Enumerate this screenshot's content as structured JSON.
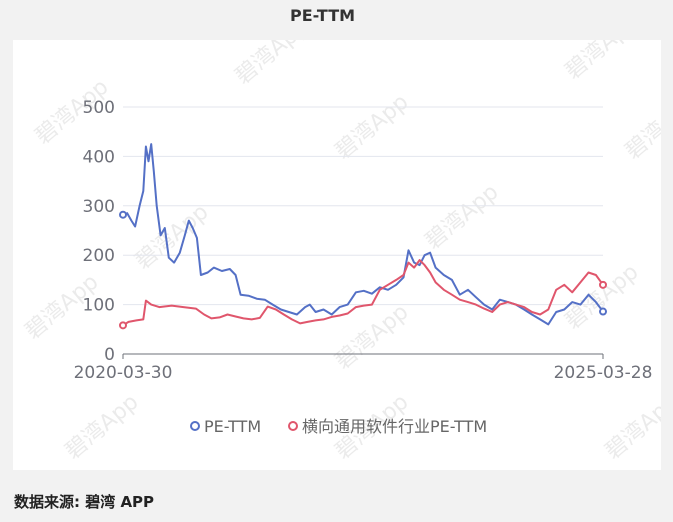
{
  "header": {
    "title": "PE-TTM"
  },
  "footer": {
    "source": "数据来源: 碧湾 APP"
  },
  "watermark": "碧湾App",
  "chart_data": {
    "type": "line",
    "title": "PE-TTM",
    "xlabel": "",
    "ylabel": "",
    "x_ticks": [
      "2020-03-30",
      "2025-03-28"
    ],
    "x_range": [
      "2020-03-30",
      "2025-03-28"
    ],
    "y_ticks": [
      0,
      100,
      200,
      300,
      400,
      500
    ],
    "ylim": [
      0,
      500
    ],
    "grid": "horizontal",
    "legend_position": "bottom",
    "colors": {
      "pe": "#5470c6",
      "industry": "#e0566c"
    },
    "series": [
      {
        "name": "PE-TTM",
        "color": "#5470c6",
        "points": [
          [
            "2020-03-30",
            282
          ],
          [
            "2020-04-15",
            285
          ],
          [
            "2020-05-01",
            270
          ],
          [
            "2020-05-15",
            258
          ],
          [
            "2020-06-01",
            300
          ],
          [
            "2020-06-15",
            330
          ],
          [
            "2020-06-25",
            420
          ],
          [
            "2020-07-05",
            390
          ],
          [
            "2020-07-15",
            425
          ],
          [
            "2020-07-25",
            370
          ],
          [
            "2020-08-05",
            300
          ],
          [
            "2020-08-20",
            240
          ],
          [
            "2020-09-05",
            255
          ],
          [
            "2020-09-20",
            195
          ],
          [
            "2020-10-10",
            185
          ],
          [
            "2020-11-01",
            205
          ],
          [
            "2020-11-20",
            240
          ],
          [
            "2020-12-05",
            270
          ],
          [
            "2020-12-20",
            255
          ],
          [
            "2021-01-05",
            235
          ],
          [
            "2021-01-20",
            160
          ],
          [
            "2021-02-15",
            165
          ],
          [
            "2021-03-10",
            175
          ],
          [
            "2021-04-10",
            168
          ],
          [
            "2021-05-10",
            172
          ],
          [
            "2021-06-01",
            160
          ],
          [
            "2021-06-20",
            120
          ],
          [
            "2021-07-20",
            118
          ],
          [
            "2021-08-20",
            112
          ],
          [
            "2021-09-20",
            110
          ],
          [
            "2021-10-20",
            100
          ],
          [
            "2021-11-20",
            90
          ],
          [
            "2021-12-20",
            85
          ],
          [
            "2022-01-20",
            80
          ],
          [
            "2022-02-20",
            95
          ],
          [
            "2022-03-10",
            100
          ],
          [
            "2022-04-01",
            85
          ],
          [
            "2022-05-01",
            90
          ],
          [
            "2022-06-01",
            80
          ],
          [
            "2022-07-01",
            95
          ],
          [
            "2022-08-01",
            100
          ],
          [
            "2022-09-01",
            125
          ],
          [
            "2022-10-01",
            128
          ],
          [
            "2022-11-01",
            122
          ],
          [
            "2022-12-01",
            135
          ],
          [
            "2023-01-01",
            130
          ],
          [
            "2023-02-01",
            140
          ],
          [
            "2023-03-01",
            155
          ],
          [
            "2023-03-20",
            210
          ],
          [
            "2023-04-10",
            185
          ],
          [
            "2023-05-01",
            180
          ],
          [
            "2023-05-20",
            200
          ],
          [
            "2023-06-10",
            205
          ],
          [
            "2023-07-01",
            175
          ],
          [
            "2023-08-01",
            160
          ],
          [
            "2023-09-01",
            150
          ],
          [
            "2023-10-01",
            120
          ],
          [
            "2023-11-01",
            130
          ],
          [
            "2023-12-01",
            115
          ],
          [
            "2024-01-01",
            100
          ],
          [
            "2024-02-01",
            90
          ],
          [
            "2024-03-01",
            110
          ],
          [
            "2024-04-01",
            105
          ],
          [
            "2024-05-01",
            100
          ],
          [
            "2024-06-01",
            90
          ],
          [
            "2024-07-01",
            80
          ],
          [
            "2024-08-01",
            70
          ],
          [
            "2024-09-01",
            60
          ],
          [
            "2024-10-01",
            85
          ],
          [
            "2024-11-01",
            90
          ],
          [
            "2024-12-01",
            105
          ],
          [
            "2025-01-01",
            100
          ],
          [
            "2025-02-01",
            120
          ],
          [
            "2025-03-01",
            105
          ],
          [
            "2025-03-28",
            86
          ]
        ]
      },
      {
        "name": "横向通用软件行业PE-TTM",
        "color": "#e0566c",
        "points": [
          [
            "2020-03-30",
            58
          ],
          [
            "2020-04-20",
            65
          ],
          [
            "2020-05-20",
            68
          ],
          [
            "2020-06-15",
            70
          ],
          [
            "2020-06-25",
            108
          ],
          [
            "2020-07-15",
            100
          ],
          [
            "2020-08-15",
            95
          ],
          [
            "2020-10-01",
            98
          ],
          [
            "2020-11-15",
            95
          ],
          [
            "2021-01-01",
            92
          ],
          [
            "2021-02-01",
            80
          ],
          [
            "2021-03-01",
            72
          ],
          [
            "2021-04-01",
            74
          ],
          [
            "2021-05-01",
            80
          ],
          [
            "2021-06-01",
            76
          ],
          [
            "2021-07-01",
            72
          ],
          [
            "2021-08-01",
            70
          ],
          [
            "2021-09-01",
            73
          ],
          [
            "2021-10-01",
            96
          ],
          [
            "2021-11-01",
            90
          ],
          [
            "2021-12-01",
            80
          ],
          [
            "2022-01-01",
            70
          ],
          [
            "2022-02-01",
            62
          ],
          [
            "2022-03-01",
            65
          ],
          [
            "2022-04-01",
            68
          ],
          [
            "2022-05-01",
            70
          ],
          [
            "2022-06-01",
            75
          ],
          [
            "2022-07-01",
            78
          ],
          [
            "2022-08-01",
            82
          ],
          [
            "2022-09-01",
            95
          ],
          [
            "2022-10-01",
            98
          ],
          [
            "2022-11-01",
            100
          ],
          [
            "2022-12-01",
            130
          ],
          [
            "2023-01-01",
            140
          ],
          [
            "2023-02-01",
            150
          ],
          [
            "2023-03-01",
            160
          ],
          [
            "2023-03-20",
            185
          ],
          [
            "2023-04-10",
            175
          ],
          [
            "2023-05-01",
            190
          ],
          [
            "2023-05-20",
            180
          ],
          [
            "2023-06-10",
            165
          ],
          [
            "2023-07-01",
            145
          ],
          [
            "2023-08-01",
            130
          ],
          [
            "2023-09-01",
            120
          ],
          [
            "2023-10-01",
            110
          ],
          [
            "2023-11-01",
            105
          ],
          [
            "2023-12-01",
            100
          ],
          [
            "2024-01-01",
            92
          ],
          [
            "2024-02-01",
            85
          ],
          [
            "2024-03-01",
            100
          ],
          [
            "2024-04-01",
            105
          ],
          [
            "2024-05-01",
            100
          ],
          [
            "2024-06-01",
            95
          ],
          [
            "2024-07-01",
            85
          ],
          [
            "2024-08-01",
            80
          ],
          [
            "2024-09-01",
            90
          ],
          [
            "2024-10-01",
            130
          ],
          [
            "2024-11-01",
            140
          ],
          [
            "2024-12-01",
            125
          ],
          [
            "2025-01-01",
            145
          ],
          [
            "2025-02-01",
            165
          ],
          [
            "2025-03-01",
            160
          ],
          [
            "2025-03-28",
            140
          ]
        ]
      }
    ]
  }
}
